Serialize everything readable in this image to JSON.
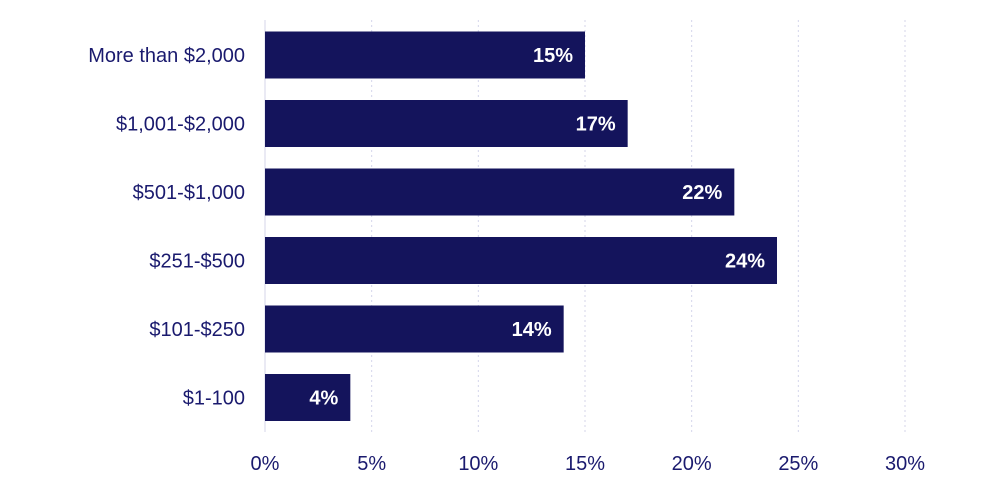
{
  "chart_data": {
    "type": "bar",
    "orientation": "horizontal",
    "categories": [
      "More than $2,000",
      "$1,001-$2,000",
      "$501-$1,000",
      "$251-$500",
      "$101-$250",
      "$1-100"
    ],
    "values": [
      15,
      17,
      22,
      24,
      14,
      4
    ],
    "data_labels": [
      "15%",
      "17%",
      "22%",
      "24%",
      "14%",
      "4%"
    ],
    "x_ticks": [
      0,
      5,
      10,
      15,
      20,
      25,
      30
    ],
    "x_tick_labels": [
      "0%",
      "5%",
      "10%",
      "15%",
      "20%",
      "25%",
      "30%"
    ],
    "xlim": [
      0,
      30
    ],
    "title": "",
    "xlabel": "",
    "ylabel": "",
    "grid": true,
    "legend": "none"
  },
  "colors": {
    "bar": "#14145c",
    "text": "#1a1a6e",
    "grid": "#d4d6ea",
    "label": "#ffffff"
  }
}
